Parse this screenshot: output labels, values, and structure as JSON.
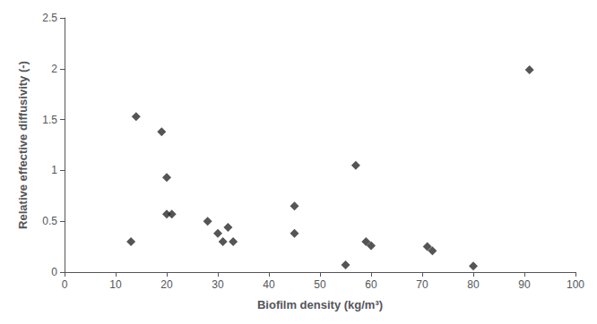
{
  "chart_data": {
    "type": "scatter",
    "x": [
      13,
      14,
      19,
      20,
      20,
      21,
      28,
      30,
      31,
      32,
      33,
      45,
      45,
      55,
      57,
      59,
      60,
      71,
      72,
      80,
      91
    ],
    "values": [
      0.3,
      1.53,
      1.38,
      0.93,
      0.57,
      0.57,
      0.5,
      0.38,
      0.3,
      0.44,
      0.3,
      0.38,
      0.65,
      0.07,
      1.05,
      0.3,
      0.26,
      0.25,
      0.21,
      0.06,
      1.99
    ],
    "xlabel": "Biofilm density (kg/m³)",
    "ylabel": "Relative effective diffusivity (-)",
    "xlim": [
      0,
      100
    ],
    "ylim": [
      0,
      2.5
    ],
    "xticks": [
      0,
      10,
      20,
      30,
      40,
      50,
      60,
      70,
      80,
      90,
      100
    ],
    "yticks": [
      0,
      0.5,
      1,
      1.5,
      2,
      2.5
    ],
    "color": "#2b2b2b",
    "marker": "diamond",
    "grid": false
  }
}
